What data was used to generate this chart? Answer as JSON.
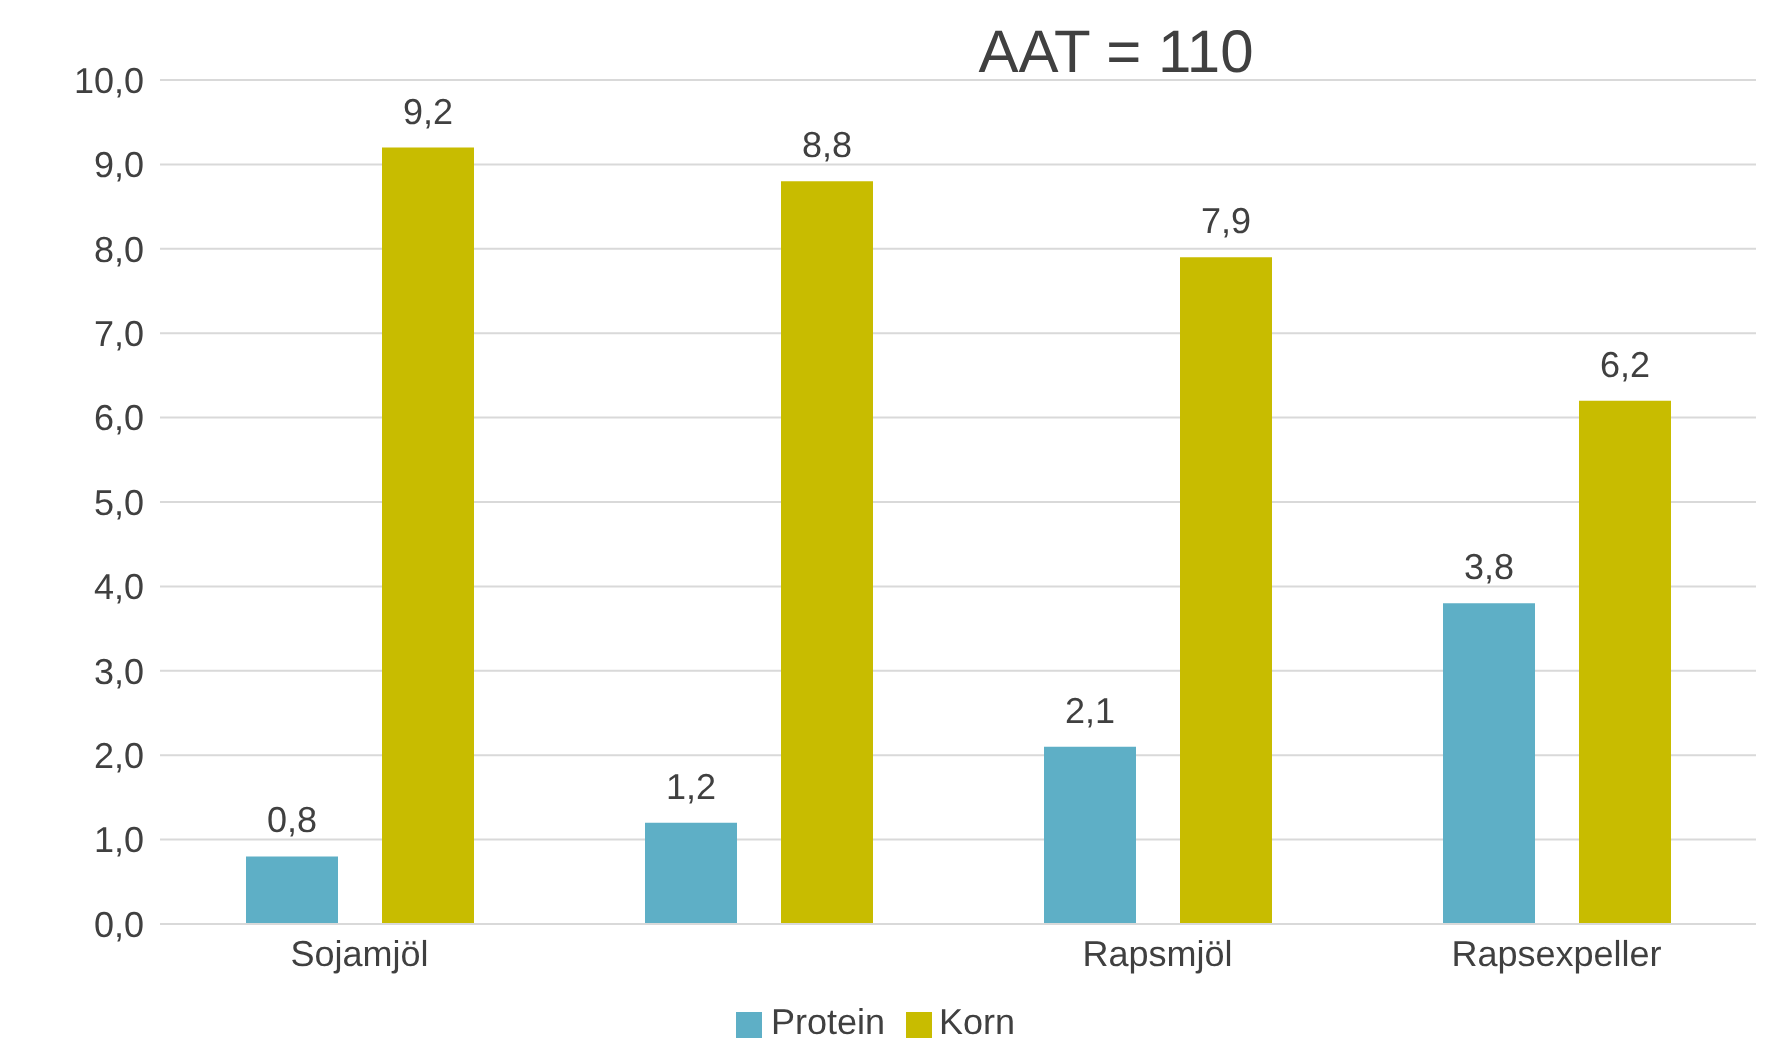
{
  "chart_data": {
    "type": "bar",
    "title": "AAT = 110",
    "categories": [
      "Sojamjöl",
      null,
      "Rapsmjöl",
      "Rapsexpeller"
    ],
    "series": [
      {
        "name": "Protein",
        "color": "#5eafc6",
        "values": [
          0.8,
          1.2,
          2.1,
          3.8
        ],
        "value_labels": [
          "0,8",
          "1,2",
          "2,1",
          "3,8"
        ]
      },
      {
        "name": "Korn",
        "color": "#c8bc00",
        "values": [
          9.2,
          8.8,
          7.9,
          6.2
        ],
        "value_labels": [
          "9,2",
          "8,8",
          "7,9",
          "6,2"
        ]
      }
    ],
    "ylim": [
      0,
      10
    ],
    "yticks": [
      {
        "value": 0,
        "label": "0,0"
      },
      {
        "value": 1,
        "label": "1,0"
      },
      {
        "value": 2,
        "label": "2,0"
      },
      {
        "value": 3,
        "label": "3,0"
      },
      {
        "value": 4,
        "label": "4,0"
      },
      {
        "value": 5,
        "label": "5,0"
      },
      {
        "value": 6,
        "label": "6,0"
      },
      {
        "value": 7,
        "label": "7,0"
      },
      {
        "value": 8,
        "label": "8,0"
      },
      {
        "value": 9,
        "label": "9,0"
      },
      {
        "value": 10,
        "label": "10,0"
      }
    ],
    "grid": "y",
    "legend": "bottom"
  }
}
